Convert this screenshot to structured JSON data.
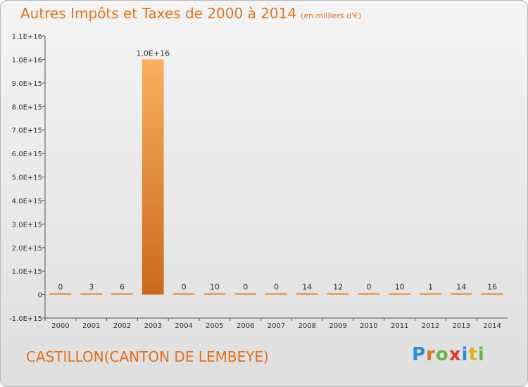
{
  "title": {
    "main": "Autres Impôts et Taxes de 2000 à 2014",
    "unit": "(en milliers d'€)"
  },
  "commune": "CASTILLON(CANTON DE LEMBEYE)",
  "logo": {
    "letters": [
      "P",
      "r",
      "o",
      "x",
      "i",
      "t",
      "i"
    ],
    "colors": [
      "#2a8fd6",
      "#e07020",
      "#6ab04c",
      "#d63a2a",
      "#2a8fd6",
      "#e0b020",
      "#6ab04c"
    ]
  },
  "chart_data": {
    "type": "bar",
    "categories": [
      "2000",
      "2001",
      "2002",
      "2003",
      "2004",
      "2005",
      "2006",
      "2007",
      "2008",
      "2009",
      "2010",
      "2011",
      "2012",
      "2013",
      "2014"
    ],
    "values": [
      0,
      3,
      6,
      1e+16,
      0,
      10,
      0,
      0,
      14,
      12,
      0,
      10,
      1,
      14,
      16
    ],
    "value_labels": [
      "0",
      "3",
      "6",
      "1.0E+16",
      "0",
      "10",
      "0",
      "0",
      "14",
      "12",
      "0",
      "10",
      "1",
      "14",
      "16"
    ],
    "ylim": [
      -1000000000000000.0,
      1.1e+16
    ],
    "yticks": [
      -1000000000000000.0,
      0,
      1000000000000000.0,
      2000000000000000.0,
      3000000000000000.0,
      4000000000000000.0,
      5000000000000000.0,
      6000000000000000.0,
      7000000000000000.0,
      8000000000000000.0,
      9000000000000000.0,
      1e+16,
      1.1e+16
    ],
    "ytick_labels": [
      "-1.0E+15",
      "0",
      "1.0E+15",
      "2.0E+15",
      "3.0E+15",
      "4.0E+15",
      "5.0E+15",
      "6.0E+15",
      "7.0E+15",
      "8.0E+15",
      "9.0E+15",
      "1.0E+16",
      "1.1E+16"
    ],
    "colors": {
      "bar_light": "#f7a85a",
      "bar_dark": "#c96a1a",
      "text": "#333333"
    },
    "grid": false
  }
}
